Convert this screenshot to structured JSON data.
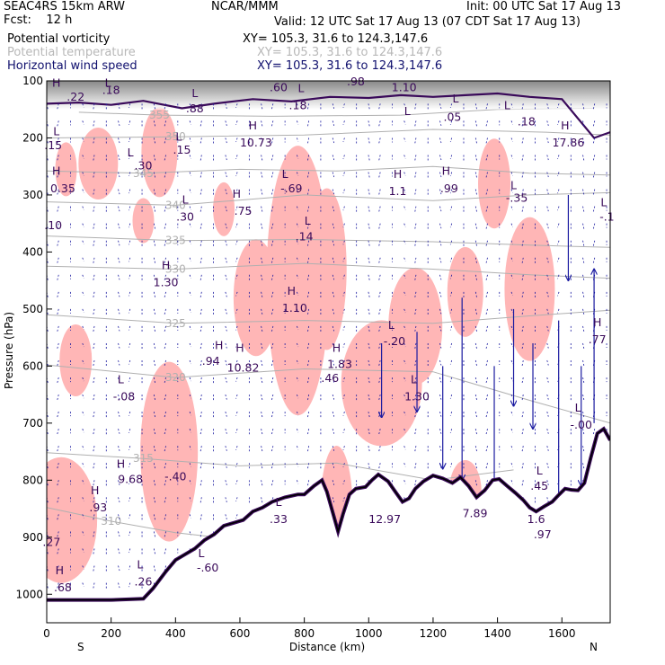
{
  "header": {
    "model": "SEAC4RS 15km ARW",
    "forecast": "Fcst:    12 h",
    "org": "NCAR/MMM",
    "init": "Init: 00 UTC Sat 17 Aug 13",
    "valid": "Valid: 12 UTC Sat 17 Aug 13 (07 CDT Sat 17 Aug 13)",
    "fields": [
      {
        "name": "Potential vorticity",
        "xy": "XY= 105.3, 31.6 to 124.3,147.6",
        "color": "#000000"
      },
      {
        "name": "Potential temperature",
        "xy": "XY= 105.3, 31.6 to 124.3,147.6",
        "color": "#b8b8b8"
      },
      {
        "name": "Horizontal wind speed",
        "xy": "XY= 105.3, 31.6 to 124.3,147.6",
        "color": "#10106e"
      }
    ]
  },
  "chart_data": {
    "type": "cross-section",
    "xlabel": "Distance (km)",
    "ylabel": "Pressure (hPa)",
    "xlim": [
      0,
      1750
    ],
    "ylim": [
      1050,
      100
    ],
    "x_ticks": [
      0,
      200,
      400,
      600,
      800,
      1000,
      1200,
      1400,
      1600
    ],
    "y_ticks": [
      100,
      200,
      300,
      400,
      500,
      600,
      700,
      800,
      900,
      1000
    ],
    "x_end_labels": {
      "left": "S",
      "right": "N"
    },
    "colors": {
      "theta": "#b0b0b0",
      "wind": "#1a1aa0",
      "pv_contour": "#3a0a5a",
      "pv_shade": "#ffb6b6",
      "terrain": "#000000"
    },
    "terrain": [
      [
        0,
        1010
      ],
      [
        100,
        1010
      ],
      [
        200,
        1010
      ],
      [
        300,
        1008
      ],
      [
        330,
        990
      ],
      [
        370,
        960
      ],
      [
        400,
        940
      ],
      [
        430,
        930
      ],
      [
        460,
        920
      ],
      [
        490,
        905
      ],
      [
        520,
        895
      ],
      [
        550,
        880
      ],
      [
        580,
        875
      ],
      [
        610,
        870
      ],
      [
        640,
        855
      ],
      [
        670,
        848
      ],
      [
        700,
        838
      ],
      [
        740,
        830
      ],
      [
        780,
        825
      ],
      [
        800,
        825
      ],
      [
        830,
        810
      ],
      [
        855,
        800
      ],
      [
        870,
        820
      ],
      [
        890,
        860
      ],
      [
        905,
        890
      ],
      [
        920,
        860
      ],
      [
        940,
        825
      ],
      [
        960,
        815
      ],
      [
        990,
        812
      ],
      [
        1010,
        800
      ],
      [
        1030,
        790
      ],
      [
        1060,
        802
      ],
      [
        1085,
        822
      ],
      [
        1105,
        838
      ],
      [
        1125,
        832
      ],
      [
        1145,
        815
      ],
      [
        1170,
        802
      ],
      [
        1200,
        792
      ],
      [
        1230,
        797
      ],
      [
        1260,
        805
      ],
      [
        1285,
        795
      ],
      [
        1310,
        810
      ],
      [
        1335,
        830
      ],
      [
        1360,
        818
      ],
      [
        1385,
        800
      ],
      [
        1405,
        798
      ],
      [
        1430,
        810
      ],
      [
        1455,
        822
      ],
      [
        1480,
        835
      ],
      [
        1500,
        848
      ],
      [
        1520,
        855
      ],
      [
        1545,
        846
      ],
      [
        1570,
        838
      ],
      [
        1590,
        826
      ],
      [
        1610,
        815
      ],
      [
        1630,
        817
      ],
      [
        1650,
        818
      ],
      [
        1670,
        805
      ],
      [
        1690,
        760
      ],
      [
        1710,
        718
      ],
      [
        1730,
        710
      ],
      [
        1750,
        730
      ]
    ],
    "theta_contours": [
      {
        "label": "355",
        "points": [
          [
            100,
            155
          ],
          [
            350,
            160
          ],
          [
            700,
            162
          ],
          [
            1100,
            160
          ],
          [
            1400,
            150
          ],
          [
            1700,
            148
          ]
        ]
      },
      {
        "label": "350",
        "points": [
          [
            0,
            200
          ],
          [
            400,
            198
          ],
          [
            800,
            195
          ],
          [
            1200,
            185
          ],
          [
            1550,
            190
          ],
          [
            1750,
            195
          ]
        ]
      },
      {
        "label": "345",
        "points": [
          [
            0,
            258
          ],
          [
            300,
            262
          ],
          [
            600,
            255
          ],
          [
            900,
            258
          ],
          [
            1200,
            250
          ],
          [
            1500,
            262
          ],
          [
            1750,
            265
          ]
        ]
      },
      {
        "label": "340",
        "points": [
          [
            0,
            312
          ],
          [
            400,
            318
          ],
          [
            800,
            300
          ],
          [
            1200,
            310
          ],
          [
            1500,
            300
          ],
          [
            1750,
            296
          ]
        ]
      },
      {
        "label": "335",
        "points": [
          [
            0,
            372
          ],
          [
            400,
            380
          ],
          [
            800,
            378
          ],
          [
            1200,
            382
          ],
          [
            1500,
            388
          ],
          [
            1750,
            392
          ]
        ]
      },
      {
        "label": "330",
        "points": [
          [
            0,
            425
          ],
          [
            400,
            430
          ],
          [
            800,
            420
          ],
          [
            1200,
            430
          ],
          [
            1500,
            440
          ],
          [
            1750,
            446
          ]
        ]
      },
      {
        "label": "325",
        "points": [
          [
            0,
            510
          ],
          [
            400,
            525
          ],
          [
            800,
            520
          ],
          [
            1200,
            525
          ],
          [
            1500,
            512
          ],
          [
            1750,
            502
          ]
        ]
      },
      {
        "label": "320",
        "points": [
          [
            0,
            598
          ],
          [
            400,
            620
          ],
          [
            800,
            605
          ],
          [
            1200,
            610
          ],
          [
            1500,
            660
          ],
          [
            1750,
            700
          ]
        ]
      },
      {
        "label": "315",
        "points": [
          [
            0,
            752
          ],
          [
            300,
            762
          ],
          [
            600,
            775
          ],
          [
            900,
            770
          ],
          [
            1200,
            800
          ],
          [
            1450,
            782
          ]
        ]
      },
      {
        "label": "310",
        "points": [
          [
            0,
            848
          ],
          [
            200,
            872
          ],
          [
            400,
            892
          ],
          [
            560,
            902
          ]
        ]
      }
    ],
    "pv_shaded_regions": [
      {
        "center": [
          60,
          255
        ],
        "rx": 12,
        "ry": 30
      },
      {
        "center": [
          160,
          245
        ],
        "rx": 22,
        "ry": 40
      },
      {
        "center": [
          350,
          225
        ],
        "rx": 20,
        "ry": 50
      },
      {
        "center": [
          300,
          345
        ],
        "rx": 12,
        "ry": 25
      },
      {
        "center": [
          650,
          480
        ],
        "rx": 25,
        "ry": 65
      },
      {
        "center": [
          780,
          450
        ],
        "rx": 35,
        "ry": 150
      },
      {
        "center": [
          870,
          430
        ],
        "rx": 22,
        "ry": 90
      },
      {
        "center": [
          1040,
          630
        ],
        "rx": 45,
        "ry": 70
      },
      {
        "center": [
          1145,
          530
        ],
        "rx": 30,
        "ry": 65
      },
      {
        "center": [
          1300,
          470
        ],
        "rx": 20,
        "ry": 50
      },
      {
        "center": [
          1390,
          280
        ],
        "rx": 18,
        "ry": 50
      },
      {
        "center": [
          1500,
          465
        ],
        "rx": 28,
        "ry": 80
      },
      {
        "center": [
          380,
          750
        ],
        "rx": 32,
        "ry": 100
      },
      {
        "center": [
          90,
          590
        ],
        "rx": 18,
        "ry": 40
      },
      {
        "center": [
          45,
          870
        ],
        "rx": 40,
        "ry": 70
      },
      {
        "center": [
          900,
          850
        ],
        "rx": 18,
        "ry": 70
      },
      {
        "center": [
          550,
          325
        ],
        "rx": 12,
        "ry": 30
      },
      {
        "center": [
          1300,
          820
        ],
        "rx": 18,
        "ry": 35
      }
    ],
    "pv_labels": [
      {
        "text": "H",
        "x": 30,
        "p": 110
      },
      {
        "text": ".22",
        "x": 90,
        "p": 135
      },
      {
        "text": "L",
        "x": 190,
        "p": 110
      },
      {
        "text": ".18",
        "x": 200,
        "p": 123
      },
      {
        "text": "L",
        "x": 460,
        "p": 128
      },
      {
        "text": ".88",
        "x": 460,
        "p": 155
      },
      {
        "text": ".60",
        "x": 720,
        "p": 118
      },
      {
        "text": "L",
        "x": 790,
        "p": 120
      },
      {
        "text": ".18",
        "x": 780,
        "p": 150
      },
      {
        "text": ".98",
        "x": 960,
        "p": 108
      },
      {
        "text": "1.10",
        "x": 1110,
        "p": 118
      },
      {
        "text": "L",
        "x": 1120,
        "p": 160
      },
      {
        "text": "L",
        "x": 1270,
        "p": 138
      },
      {
        "text": ".05",
        "x": 1260,
        "p": 170
      },
      {
        "text": "L",
        "x": 1430,
        "p": 150
      },
      {
        "text": ".18",
        "x": 1490,
        "p": 178
      },
      {
        "text": "H",
        "x": 640,
        "p": 185
      },
      {
        "text": "10.73",
        "x": 650,
        "p": 215
      },
      {
        "text": "H",
        "x": 1610,
        "p": 185
      },
      {
        "text": "17.86",
        "x": 1620,
        "p": 215
      },
      {
        "text": "L",
        "x": 30,
        "p": 195
      },
      {
        "text": ".15",
        "x": 20,
        "p": 220
      },
      {
        "text": "L",
        "x": 410,
        "p": 205
      },
      {
        "text": ".15",
        "x": 420,
        "p": 228
      },
      {
        "text": "L",
        "x": 260,
        "p": 232
      },
      {
        "text": ".30",
        "x": 300,
        "p": 255
      },
      {
        "text": "H",
        "x": 30,
        "p": 265
      },
      {
        "text": "0.35",
        "x": 50,
        "p": 295
      },
      {
        "text": "L",
        "x": 740,
        "p": 270
      },
      {
        "text": "-.69",
        "x": 760,
        "p": 295
      },
      {
        "text": "H",
        "x": 1090,
        "p": 270
      },
      {
        "text": "1.1",
        "x": 1090,
        "p": 300
      },
      {
        "text": "H",
        "x": 1240,
        "p": 265
      },
      {
        "text": ".99",
        "x": 1250,
        "p": 295
      },
      {
        "text": "L",
        "x": 1450,
        "p": 290
      },
      {
        "text": "-.35",
        "x": 1460,
        "p": 312
      },
      {
        "text": "L",
        "x": 430,
        "p": 315
      },
      {
        "text": ".30",
        "x": 430,
        "p": 345
      },
      {
        "text": "H",
        "x": 590,
        "p": 305
      },
      {
        "text": ".75",
        "x": 610,
        "p": 335
      },
      {
        "text": "L",
        "x": 1730,
        "p": 320
      },
      {
        "text": "-.1",
        "x": 1740,
        "p": 345
      },
      {
        "text": ".10",
        "x": 20,
        "p": 360
      },
      {
        "text": "L",
        "x": 810,
        "p": 352
      },
      {
        "text": ".14",
        "x": 800,
        "p": 380
      },
      {
        "text": "H",
        "x": 370,
        "p": 430
      },
      {
        "text": "1.30",
        "x": 370,
        "p": 460
      },
      {
        "text": "H",
        "x": 760,
        "p": 475
      },
      {
        "text": "1.10",
        "x": 770,
        "p": 505
      },
      {
        "text": "L",
        "x": 1070,
        "p": 535
      },
      {
        "text": "-.20",
        "x": 1080,
        "p": 563
      },
      {
        "text": "H",
        "x": 1710,
        "p": 530
      },
      {
        "text": ".77",
        "x": 1710,
        "p": 560
      },
      {
        "text": "H",
        "x": 535,
        "p": 570
      },
      {
        "text": ".94",
        "x": 510,
        "p": 598
      },
      {
        "text": "H",
        "x": 600,
        "p": 575
      },
      {
        "text": "10.82",
        "x": 610,
        "p": 610
      },
      {
        "text": "H",
        "x": 900,
        "p": 575
      },
      {
        "text": "1.83",
        "x": 910,
        "p": 603
      },
      {
        "text": ".46",
        "x": 880,
        "p": 628
      },
      {
        "text": "L",
        "x": 230,
        "p": 630
      },
      {
        "text": "-.08",
        "x": 240,
        "p": 660
      },
      {
        "text": "L",
        "x": 1140,
        "p": 630
      },
      {
        "text": "1.30",
        "x": 1150,
        "p": 660
      },
      {
        "text": "L",
        "x": 1650,
        "p": 680
      },
      {
        "text": "-.00",
        "x": 1660,
        "p": 710
      },
      {
        "text": "H",
        "x": 230,
        "p": 778
      },
      {
        "text": "9.68",
        "x": 260,
        "p": 805
      },
      {
        "text": "-.40",
        "x": 400,
        "p": 800
      },
      {
        "text": "L",
        "x": 1530,
        "p": 790
      },
      {
        "text": ".45",
        "x": 1530,
        "p": 817
      },
      {
        "text": "H",
        "x": 150,
        "p": 825
      },
      {
        "text": ".93",
        "x": 160,
        "p": 855
      },
      {
        "text": "L",
        "x": 720,
        "p": 845
      },
      {
        "text": ".33",
        "x": 720,
        "p": 875
      },
      {
        "text": "12.97",
        "x": 1050,
        "p": 875
      },
      {
        "text": "7.89",
        "x": 1330,
        "p": 865
      },
      {
        "text": "1.6",
        "x": 1520,
        "p": 875
      },
      {
        "text": ".97",
        "x": 1540,
        "p": 902
      },
      {
        "text": ".27",
        "x": 15,
        "p": 915
      },
      {
        "text": "L",
        "x": 480,
        "p": 935
      },
      {
        "text": "-.60",
        "x": 500,
        "p": 960
      },
      {
        "text": "L",
        "x": 290,
        "p": 955
      },
      {
        "text": ".26",
        "x": 300,
        "p": 985
      },
      {
        "text": "H",
        "x": 40,
        "p": 965
      },
      {
        "text": ".68",
        "x": 50,
        "p": 995
      }
    ],
    "wind_vectors": [
      {
        "x": 1390,
        "p": 600,
        "dp": 260
      },
      {
        "x": 1700,
        "p": 700,
        "dp": -270
      },
      {
        "x": 1590,
        "p": 520,
        "dp": 360
      },
      {
        "x": 900,
        "p": 880,
        "dp": 110
      },
      {
        "x": 1150,
        "p": 540,
        "dp": 140
      },
      {
        "x": 1040,
        "p": 560,
        "dp": 130
      },
      {
        "x": 1290,
        "p": 480,
        "dp": 320
      },
      {
        "x": 1230,
        "p": 600,
        "dp": 180
      },
      {
        "x": 1450,
        "p": 500,
        "dp": 170
      },
      {
        "x": 1510,
        "p": 560,
        "dp": 150
      },
      {
        "x": 1660,
        "p": 600,
        "dp": 210
      },
      {
        "x": 1620,
        "p": 300,
        "dp": 150
      }
    ]
  }
}
